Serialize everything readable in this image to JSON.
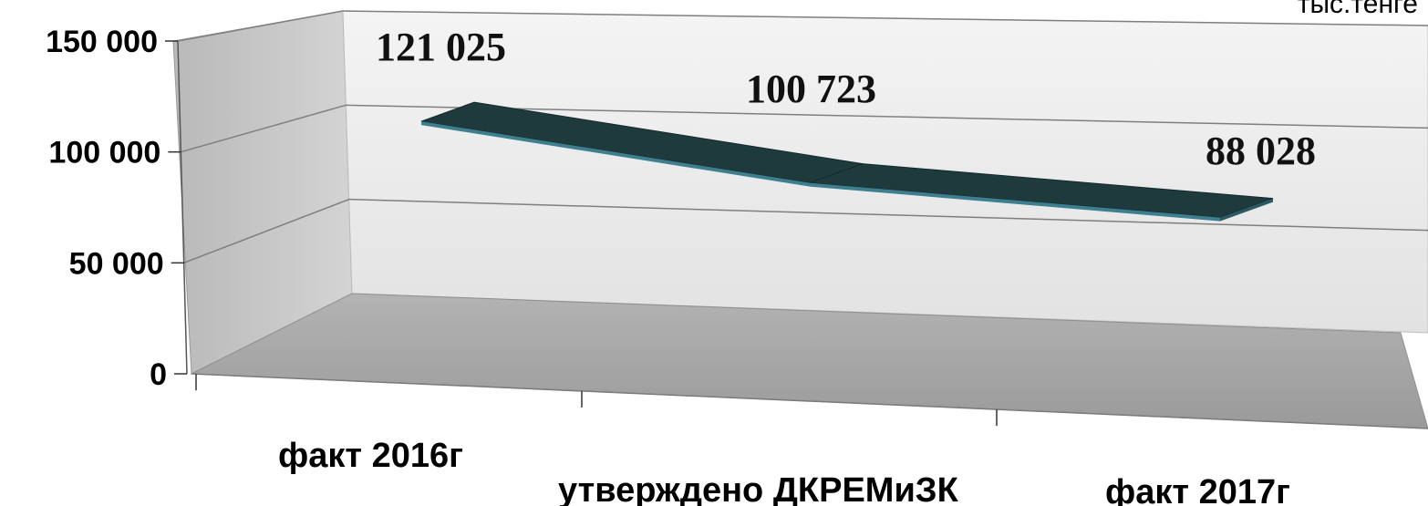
{
  "chart_data": {
    "type": "line",
    "title": "",
    "unit_label": "тыс.тенге",
    "categories": [
      "факт 2016г",
      "утверждено ДКРЕМиЗК",
      "факт 2017г"
    ],
    "series": [
      {
        "values": [
          121025,
          100723,
          88028
        ]
      }
    ],
    "data_labels": [
      "121 025",
      "100 723",
      "88 028"
    ],
    "ylim": [
      0,
      150000
    ],
    "yticks": [
      0,
      50000,
      100000,
      150000
    ],
    "ytick_labels": [
      "0",
      "50 000",
      "100 000",
      "150 000"
    ],
    "grid": true,
    "style": "3d-line",
    "colors": {
      "line_top": "#1e3a3d",
      "line_edge": "#3e7f8f",
      "back_wall": "#ececec",
      "side_wall": "#c4c4c4",
      "floor": "#a8a8a8",
      "grid": "#7f7f7f"
    }
  }
}
